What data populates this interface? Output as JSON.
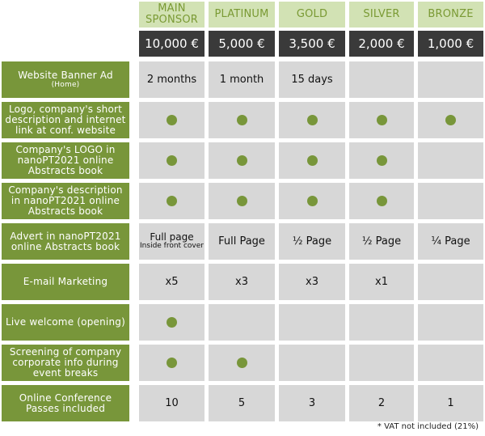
{
  "tiers": [
    {
      "name_line1": "MAIN",
      "name_line2": "SPONSOR",
      "price": "10,000 €"
    },
    {
      "name_line1": "PLATINUM",
      "name_line2": "",
      "price": "5,000 €"
    },
    {
      "name_line1": "GOLD",
      "name_line2": "",
      "price": "3,500 €"
    },
    {
      "name_line1": "SILVER",
      "name_line2": "",
      "price": "2,000 €"
    },
    {
      "name_line1": "BRONZE",
      "name_line2": "",
      "price": "1,000 €"
    }
  ],
  "rows": [
    {
      "label": "Website Banner Ad",
      "sublabel": "(Home)",
      "values": [
        "2 months",
        "1 month",
        "15 days",
        "",
        ""
      ],
      "dots": [
        false,
        false,
        false,
        false,
        false
      ]
    },
    {
      "label": "Logo, company's short description and internet link at conf. website",
      "sublabel": "",
      "values": [
        "",
        "",
        "",
        "",
        ""
      ],
      "dots": [
        true,
        true,
        true,
        true,
        true
      ]
    },
    {
      "label": "Company's LOGO in nanoPT2021 online Abstracts book",
      "sublabel": "",
      "values": [
        "",
        "",
        "",
        "",
        ""
      ],
      "dots": [
        true,
        true,
        true,
        true,
        false
      ]
    },
    {
      "label": "Company's description in nanoPT2021 online Abstracts book",
      "sublabel": "",
      "values": [
        "",
        "",
        "",
        "",
        ""
      ],
      "dots": [
        true,
        true,
        true,
        true,
        false
      ]
    },
    {
      "label": "Advert in nanoPT2021 online Abstracts book",
      "sublabel": "",
      "values": [
        "Full page",
        "Full Page",
        "½ Page",
        "½ Page",
        "¼ Page"
      ],
      "subvalues": [
        "Inside front cover",
        "",
        "",
        "",
        ""
      ],
      "dots": [
        false,
        false,
        false,
        false,
        false
      ]
    },
    {
      "label": "E-mail Marketing",
      "sublabel": "",
      "values": [
        "x5",
        "x3",
        "x3",
        "x1",
        ""
      ],
      "dots": [
        false,
        false,
        false,
        false,
        false
      ]
    },
    {
      "label": "Live welcome (opening)",
      "sublabel": "",
      "values": [
        "",
        "",
        "",
        "",
        ""
      ],
      "dots": [
        true,
        false,
        false,
        false,
        false
      ]
    },
    {
      "label": "Screening of company corporate info during event breaks",
      "sublabel": "",
      "values": [
        "",
        "",
        "",
        "",
        ""
      ],
      "dots": [
        true,
        true,
        false,
        false,
        false
      ]
    },
    {
      "label": "Online Conference Passes included",
      "sublabel": "",
      "values": [
        "10",
        "5",
        "3",
        "2",
        "1"
      ],
      "dots": [
        false,
        false,
        false,
        false,
        false
      ]
    }
  ],
  "footnote": "* VAT not included (21%)",
  "colors": {
    "feature_bg": "#78963a",
    "tier_bg": "#d2e2b4",
    "price_bg": "#3a3a3a",
    "cell_bg": "#d7d7d7",
    "dot": "#78963a"
  }
}
